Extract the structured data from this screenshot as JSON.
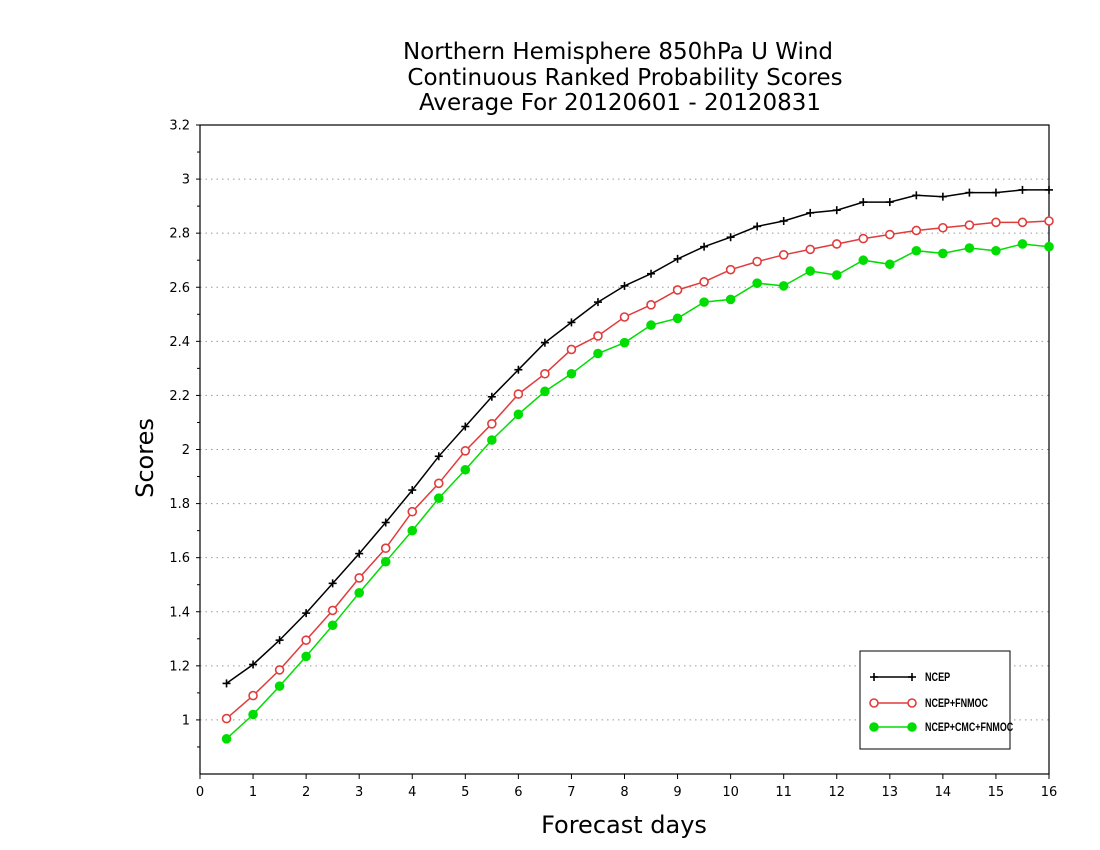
{
  "chart_data": {
    "type": "line",
    "title": [
      "Northern Hemisphere 850hPa U Wind",
      "Continuous Ranked Probability Scores",
      "Average For 20120601 - 20120831"
    ],
    "xlabel": "Forecast days",
    "ylabel": "Scores",
    "xlim": [
      0,
      16
    ],
    "ylim": [
      0.8,
      3.2
    ],
    "xticks": [
      0,
      1,
      2,
      3,
      4,
      5,
      6,
      7,
      8,
      9,
      10,
      11,
      12,
      13,
      14,
      15,
      16
    ],
    "xtick_labels": [
      "0",
      "1",
      "2",
      "3",
      "4",
      "5",
      "6",
      "7",
      "8",
      "9",
      "10",
      "11",
      "12",
      "13",
      "14",
      "15",
      "16"
    ],
    "yticks": [
      1.0,
      1.2,
      1.4,
      1.6,
      1.8,
      2.0,
      2.2,
      2.4,
      2.6,
      2.8,
      3.0,
      3.2
    ],
    "ytick_labels": [
      "1",
      "1.2",
      "1.4",
      "1.6",
      "1.8",
      "2",
      "2.2",
      "2.4",
      "2.6",
      "2.8",
      "3",
      "3.2"
    ],
    "grid": "horizontal dotted",
    "legend_position": "bottom-right",
    "x": [
      0.5,
      1.0,
      1.5,
      2.0,
      2.5,
      3.0,
      3.5,
      4.0,
      4.5,
      5.0,
      5.5,
      6.0,
      6.5,
      7.0,
      7.5,
      8.0,
      8.5,
      9.0,
      9.5,
      10.0,
      10.5,
      11.0,
      11.5,
      12.0,
      12.5,
      13.0,
      13.5,
      14.0,
      14.5,
      15.0,
      15.5,
      16.0
    ],
    "series": [
      {
        "name": "NCEP",
        "color": "#000000",
        "marker": "plus",
        "values": [
          1.135,
          1.205,
          1.295,
          1.395,
          1.505,
          1.615,
          1.73,
          1.85,
          1.975,
          2.085,
          2.195,
          2.295,
          2.395,
          2.47,
          2.545,
          2.605,
          2.65,
          2.705,
          2.75,
          2.785,
          2.825,
          2.845,
          2.875,
          2.885,
          2.915,
          2.915,
          2.94,
          2.935,
          2.95,
          2.95,
          2.96,
          2.96
        ]
      },
      {
        "name": "NCEP+FNMOC",
        "color": "#e03c3c",
        "marker": "open-circle",
        "values": [
          1.005,
          1.09,
          1.185,
          1.295,
          1.405,
          1.525,
          1.635,
          1.77,
          1.875,
          1.995,
          2.095,
          2.205,
          2.28,
          2.37,
          2.42,
          2.49,
          2.535,
          2.59,
          2.62,
          2.665,
          2.695,
          2.72,
          2.74,
          2.76,
          2.78,
          2.795,
          2.81,
          2.82,
          2.83,
          2.84,
          2.84,
          2.845
        ]
      },
      {
        "name": "NCEP+CMC+FNMOC",
        "color": "#00dd00",
        "marker": "filled-circle",
        "values": [
          0.93,
          1.02,
          1.125,
          1.235,
          1.35,
          1.47,
          1.585,
          1.7,
          1.82,
          1.925,
          2.035,
          2.13,
          2.215,
          2.28,
          2.355,
          2.395,
          2.46,
          2.485,
          2.545,
          2.555,
          2.615,
          2.605,
          2.66,
          2.645,
          2.7,
          2.685,
          2.735,
          2.725,
          2.745,
          2.735,
          2.76,
          2.75
        ]
      }
    ]
  }
}
